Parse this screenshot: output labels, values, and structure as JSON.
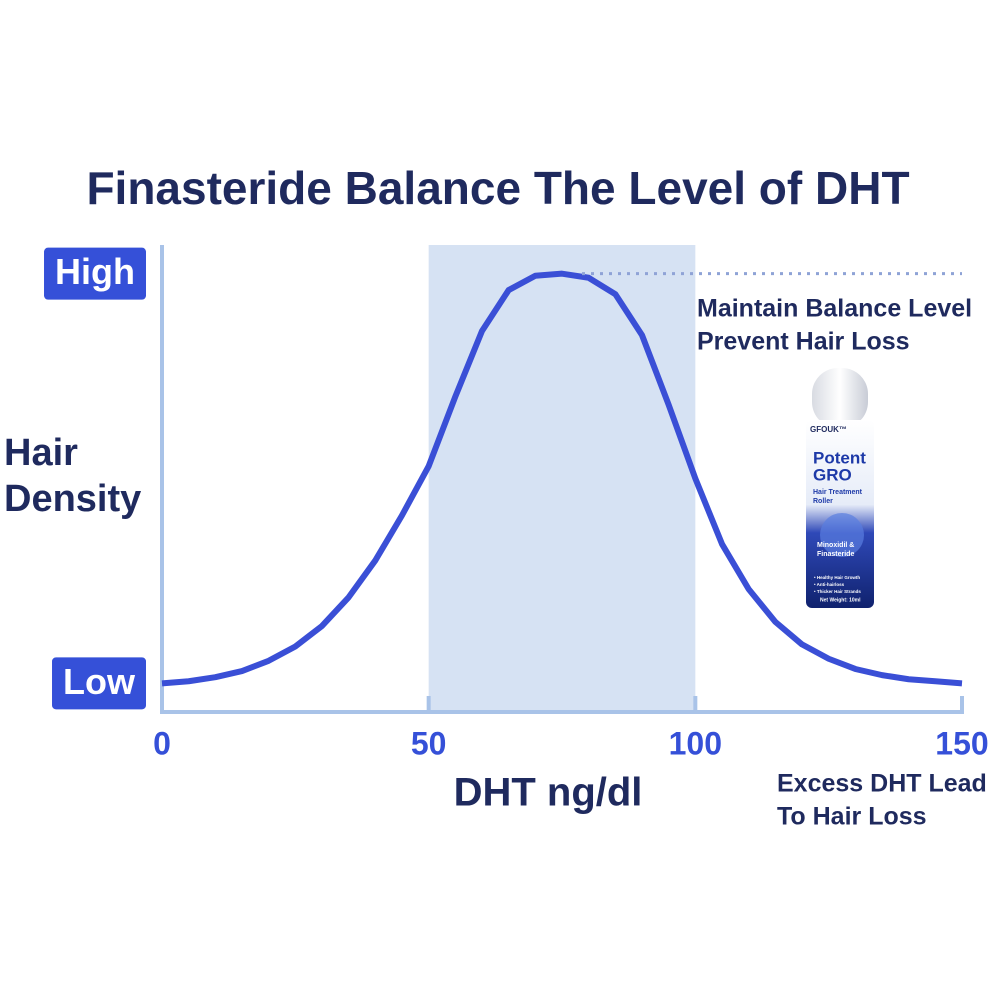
{
  "chart_data": {
    "type": "line",
    "title": "Finasteride Balance The Level of DHT",
    "xlabel": "DHT ng/dl",
    "ylabel": "Hair Density",
    "x": [
      0,
      5,
      10,
      15,
      20,
      25,
      30,
      35,
      40,
      45,
      50,
      55,
      60,
      65,
      70,
      75,
      80,
      85,
      90,
      95,
      100,
      105,
      110,
      115,
      120,
      125,
      130,
      135,
      140,
      145,
      150
    ],
    "series": [
      {
        "color": "#3a4fd6",
        "values": [
          0,
          0.005,
          0.015,
          0.03,
          0.055,
          0.09,
          0.14,
          0.21,
          0.3,
          0.41,
          0.53,
          0.7,
          0.86,
          0.96,
          0.995,
          1,
          0.99,
          0.95,
          0.85,
          0.68,
          0.5,
          0.34,
          0.23,
          0.15,
          0.095,
          0.06,
          0.035,
          0.02,
          0.01,
          0.005,
          0
        ]
      }
    ],
    "xlim": [
      0,
      150
    ],
    "xticks": [
      0,
      50,
      100,
      150
    ],
    "ylim": [
      -0.07,
      1.07
    ],
    "yticks": [
      {
        "value": 0,
        "label": "Low"
      },
      {
        "value": 1,
        "label": "High"
      }
    ],
    "highlight_range": [
      50,
      100
    ],
    "highlight_color": "#d6e2f3",
    "annotations": [
      [
        "Maintain Balance Level",
        "Prevent Hair Loss"
      ],
      [
        "Excess DHT Lead",
        "To Hair Loss"
      ]
    ],
    "product": {
      "brand": "GFOUK™",
      "name": [
        "Potent",
        "GRO"
      ],
      "subtitle": [
        "Hair Treatment",
        "Roller"
      ],
      "ingredients": [
        "Minoxidil &",
        "Finasteride"
      ],
      "bullets": [
        "• Healthy Hair Growth",
        "• Anti-hairloss",
        "• Thicker Hair Strands"
      ],
      "weight": "Net Weight: 10ml"
    }
  }
}
